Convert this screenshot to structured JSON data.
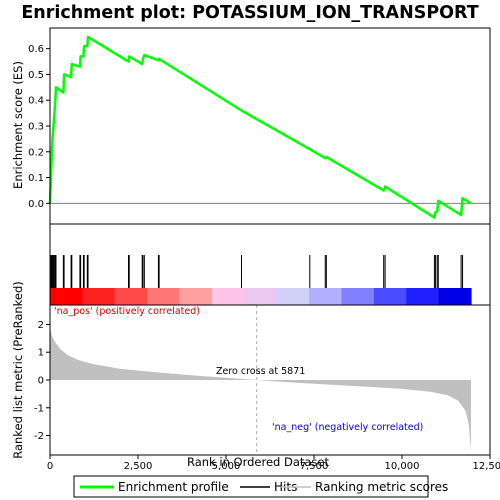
{
  "title": "Enrichment plot: POTASSIUM_ION_TRANSPORT",
  "chart_data": {
    "type": "line",
    "title": "Enrichment plot: POTASSIUM_ION_TRANSPORT",
    "x_range": [
      0,
      12500
    ],
    "x_ticks": [
      0,
      2500,
      5000,
      7500,
      10000,
      12500
    ],
    "x_tick_labels": [
      "0",
      "2,500",
      "5,000",
      "7,500",
      "10,000",
      "12,500"
    ],
    "xlabel": "Rank in Ordered Dataset",
    "dataset_size": 11960,
    "es_panel": {
      "ylabel": "Enrichment score (ES)",
      "ylim": [
        -0.08,
        0.68
      ],
      "y_ticks": [
        0.0,
        0.1,
        0.2,
        0.3,
        0.4,
        0.5,
        0.6
      ],
      "y_tick_labels": [
        "0.0",
        "0.1",
        "0.2",
        "0.3",
        "0.4",
        "0.5",
        "0.6"
      ],
      "series": [
        {
          "name": "Enrichment profile",
          "color": "#00ff00",
          "points": [
            [
              0,
              0.0
            ],
            [
              30,
              0.12
            ],
            [
              50,
              0.19
            ],
            [
              70,
              0.25
            ],
            [
              100,
              0.3
            ],
            [
              130,
              0.36
            ],
            [
              150,
              0.4
            ],
            [
              170,
              0.45
            ],
            [
              380,
              0.43
            ],
            [
              400,
              0.5
            ],
            [
              600,
              0.49
            ],
            [
              620,
              0.54
            ],
            [
              850,
              0.53
            ],
            [
              870,
              0.57
            ],
            [
              950,
              0.57
            ],
            [
              970,
              0.61
            ],
            [
              1060,
              0.61
            ],
            [
              1080,
              0.645
            ],
            [
              2230,
              0.55
            ],
            [
              2250,
              0.57
            ],
            [
              2620,
              0.54
            ],
            [
              2640,
              0.56
            ],
            [
              2680,
              0.575
            ],
            [
              3080,
              0.555
            ],
            [
              3100,
              0.56
            ],
            [
              5440,
              0.36
            ],
            [
              7380,
              0.21
            ],
            [
              7820,
              0.175
            ],
            [
              7850,
              0.18
            ],
            [
              9480,
              0.05
            ],
            [
              9520,
              0.065
            ],
            [
              10920,
              -0.055
            ],
            [
              10950,
              -0.035
            ],
            [
              11000,
              -0.03
            ],
            [
              11030,
              0.01
            ],
            [
              11680,
              -0.045
            ],
            [
              11720,
              0.02
            ],
            [
              11960,
              0.0
            ]
          ]
        }
      ]
    },
    "hits": [
      30,
      50,
      70,
      100,
      130,
      150,
      170,
      380,
      400,
      600,
      620,
      850,
      870,
      950,
      970,
      1060,
      1080,
      2230,
      2250,
      2620,
      2640,
      2680,
      3080,
      3100,
      5440,
      7380,
      7820,
      7850,
      9480,
      9520,
      10920,
      10950,
      11000,
      11030,
      11680,
      11720
    ],
    "metric_panel": {
      "ylabel": "Ranked list metric (PreRanked)",
      "ylim": [
        -2.7,
        2.7
      ],
      "y_ticks": [
        -2,
        -1,
        0,
        1,
        2
      ],
      "y_tick_labels": [
        "-2",
        "-1",
        "0",
        "1",
        "2"
      ],
      "series": [
        {
          "name": "Ranking metric scores",
          "color": "#c0c0c0",
          "points": [
            [
              0,
              1.9
            ],
            [
              50,
              1.6
            ],
            [
              150,
              1.35
            ],
            [
              300,
              1.1
            ],
            [
              500,
              0.9
            ],
            [
              800,
              0.72
            ],
            [
              1200,
              0.58
            ],
            [
              2000,
              0.4
            ],
            [
              3000,
              0.28
            ],
            [
              4000,
              0.17
            ],
            [
              5000,
              0.08
            ],
            [
              5871,
              0.0
            ],
            [
              7000,
              -0.1
            ],
            [
              8000,
              -0.17
            ],
            [
              9000,
              -0.24
            ],
            [
              10000,
              -0.32
            ],
            [
              10800,
              -0.42
            ],
            [
              11300,
              -0.55
            ],
            [
              11600,
              -0.75
            ],
            [
              11800,
              -1.1
            ],
            [
              11900,
              -1.6
            ],
            [
              11960,
              -2.6
            ]
          ]
        }
      ],
      "zero_cross_label": "Zero cross at 5871",
      "zero_cross": 5871,
      "pos_label": "'na_pos' (positively correlated)",
      "neg_label": "'na_neg' (negatively correlated)"
    },
    "heatmap_colors": [
      "#ff0000",
      "#ff2020",
      "#ff4a4a",
      "#ff7676",
      "#ffa0a0",
      "#ffc4e8",
      "#eac8f0",
      "#d0d0f8",
      "#b0b0ff",
      "#8080ff",
      "#4a4aff",
      "#2020ff",
      "#0000e6"
    ],
    "legend": {
      "placement": "bottom",
      "items": [
        {
          "label": "Enrichment profile",
          "color": "#00ff00"
        },
        {
          "label": "Hits",
          "color": "#000000"
        },
        {
          "label": "Ranking metric scores",
          "color": "#c0c0c0"
        }
      ]
    }
  }
}
